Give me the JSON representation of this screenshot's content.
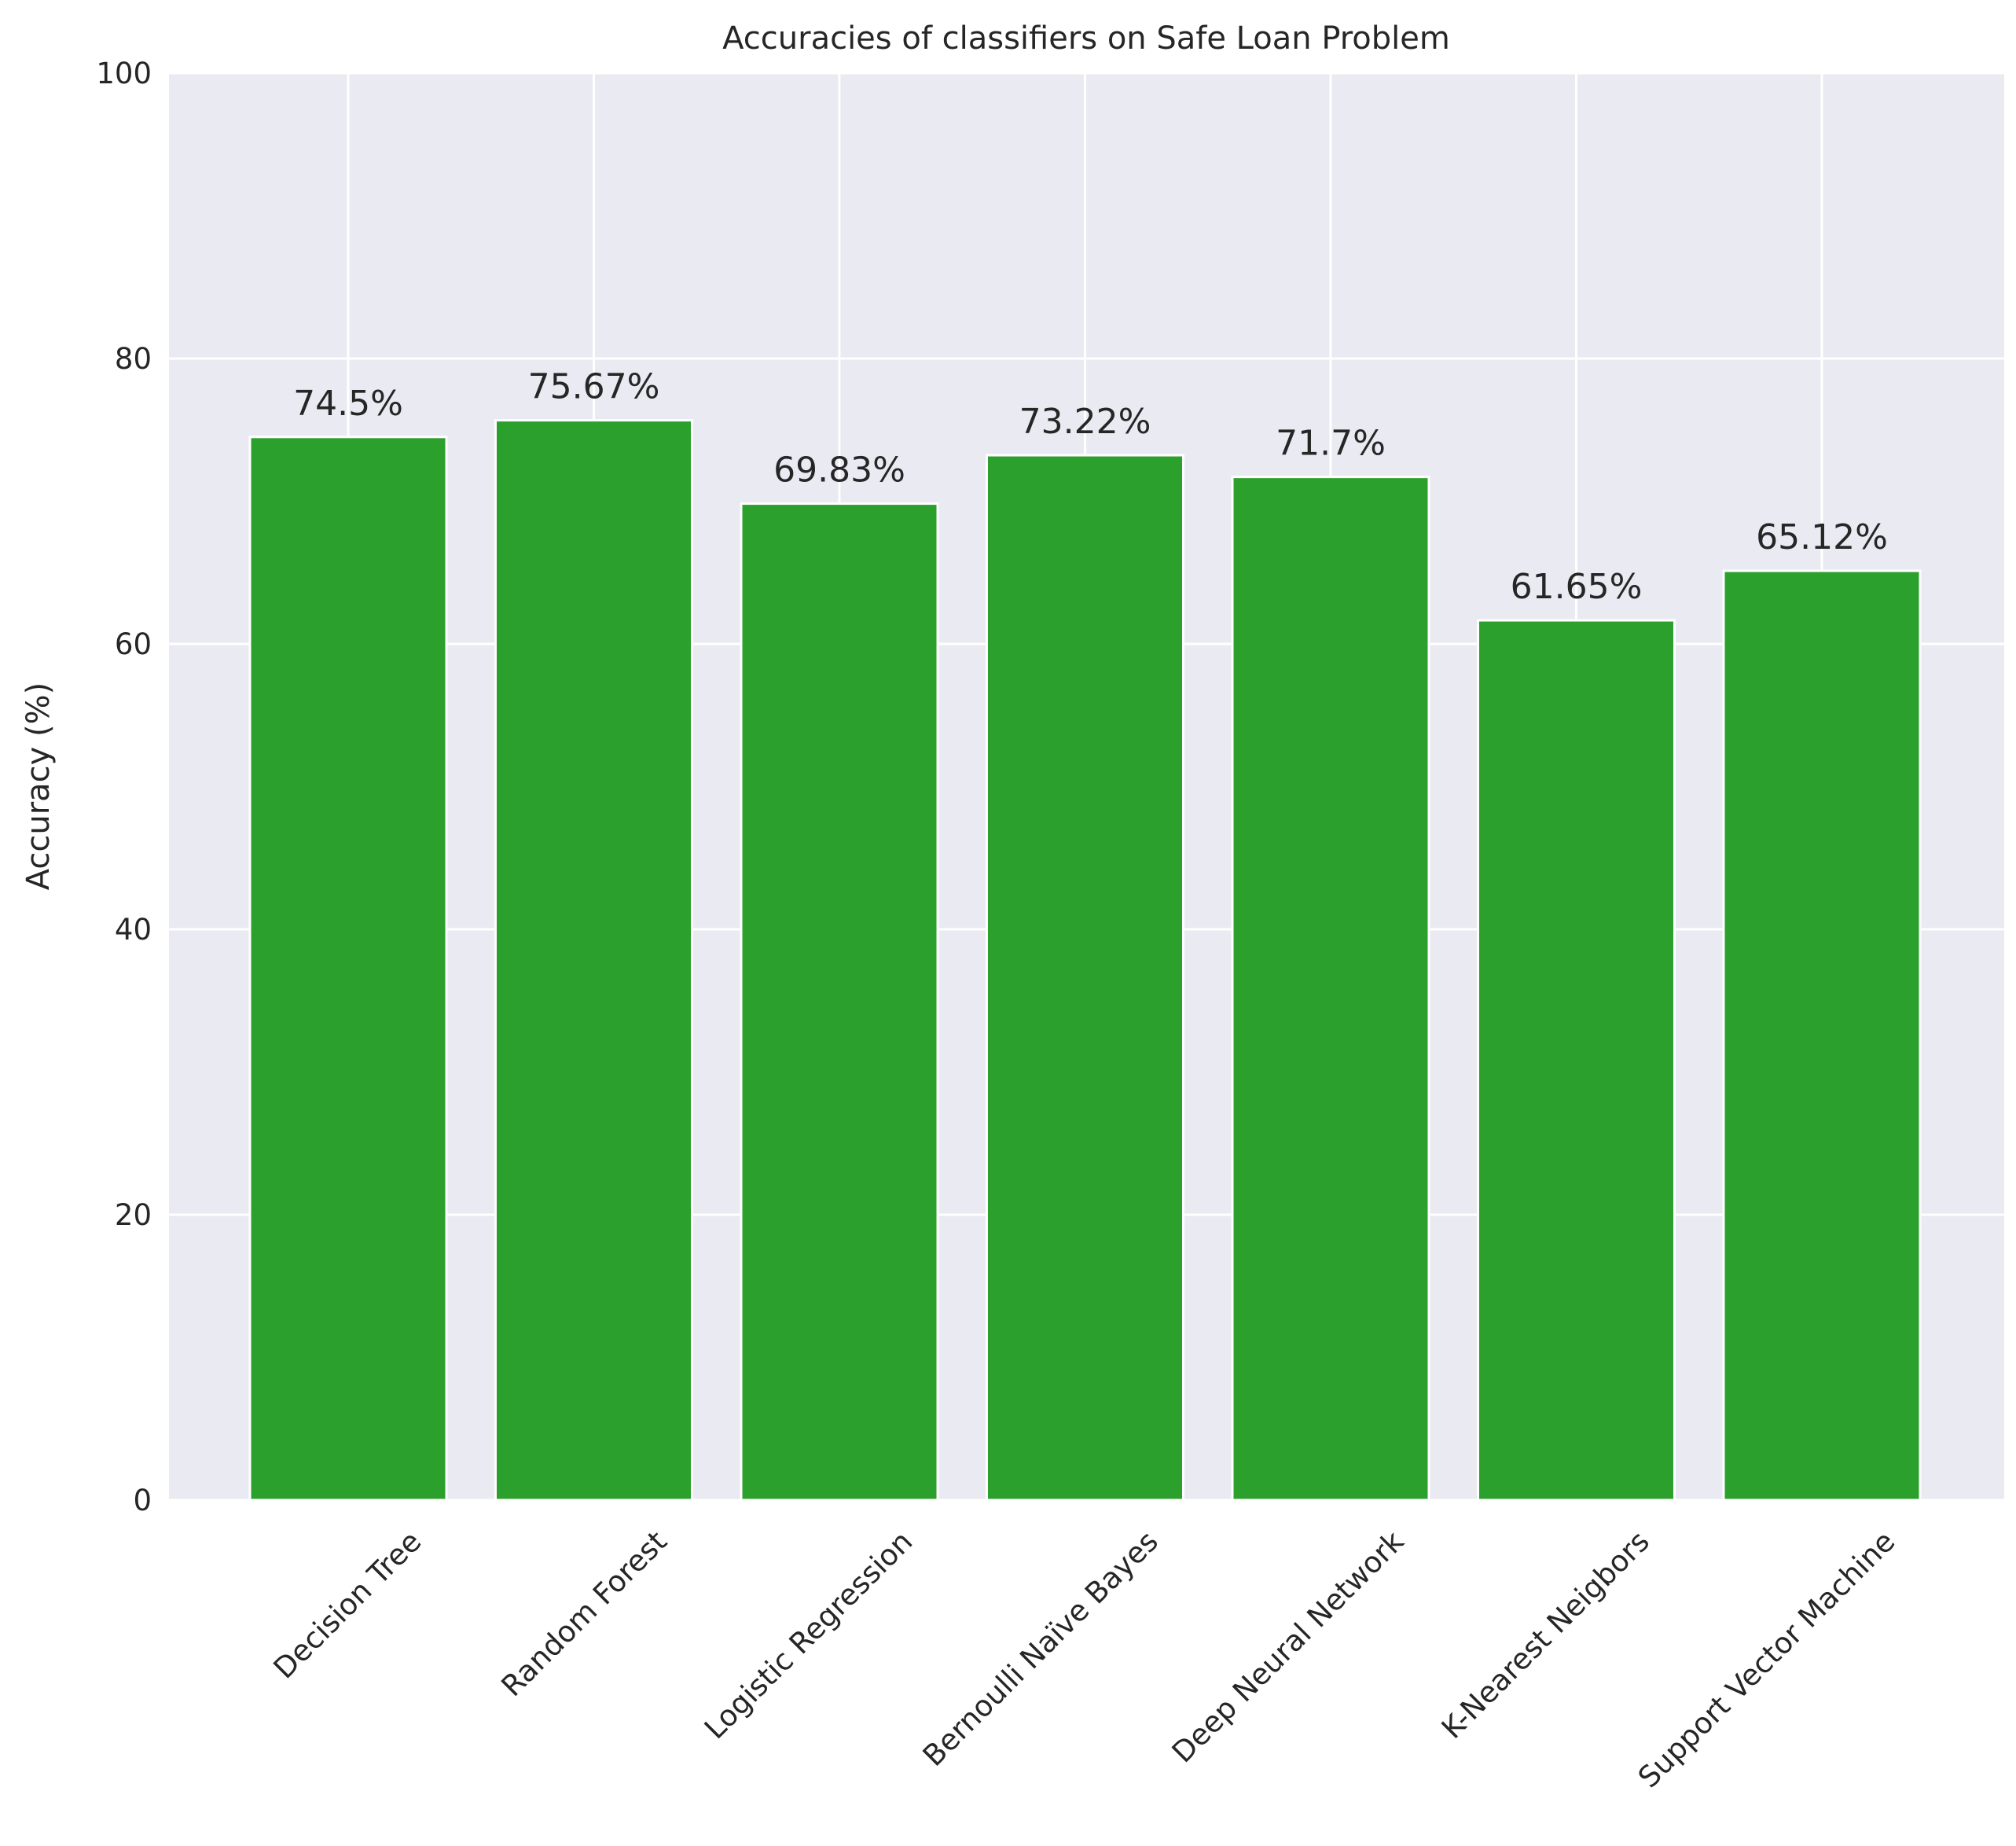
{
  "chart_data": {
    "type": "bar",
    "title": "Accuracies of classifiers on Safe Loan Problem",
    "xlabel": "",
    "ylabel": "Accuracy (%)",
    "ylim": [
      0,
      100
    ],
    "yticks": [
      0,
      20,
      40,
      60,
      80,
      100
    ],
    "grid": true,
    "categories": [
      "Decision Tree",
      "Random Forest",
      "Logistic Regression",
      "Bernoulli Naïve Bayes",
      "Deep Neural Network",
      "K-Nearest Neigbors",
      "Support Vector Machine"
    ],
    "values": [
      74.5,
      75.67,
      69.83,
      73.22,
      71.7,
      61.65,
      65.12
    ],
    "data_labels": [
      "74.5%",
      "75.67%",
      "69.83%",
      "73.22%",
      "71.7%",
      "61.65%",
      "65.12%"
    ],
    "colors": {
      "bar": "#2ca02c",
      "plot_background": "#eaeaf2",
      "grid": "#ffffff",
      "text": "#262626"
    }
  }
}
